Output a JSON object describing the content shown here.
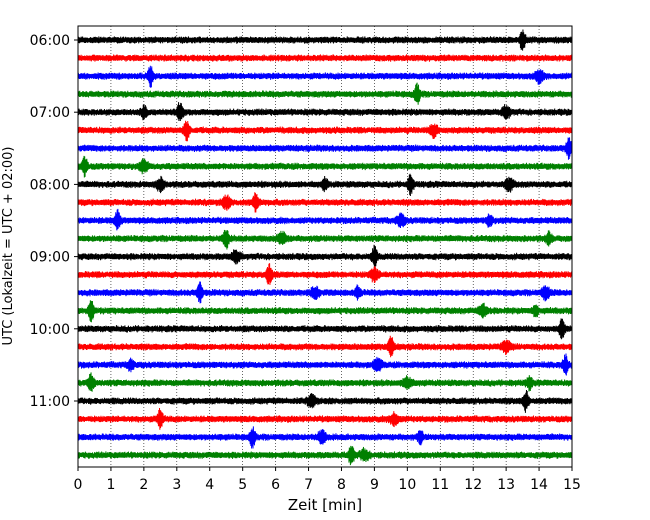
{
  "chart_data": {
    "type": "line",
    "xlabel": "Zeit  [min]",
    "ylabel": "UTC (Lokalzeit = UTC + 02:00)",
    "xlim": [
      0,
      15
    ],
    "x_ticks": [
      "0",
      "1",
      "2",
      "3",
      "4",
      "5",
      "6",
      "7",
      "8",
      "9",
      "10",
      "11",
      "12",
      "13",
      "14",
      "15"
    ],
    "y_ticks": [
      "06:00",
      "07:00",
      "08:00",
      "09:00",
      "10:00",
      "11:00"
    ],
    "grid": "vertical-dotted",
    "trace_colors": [
      "#000000",
      "#ff0000",
      "#0000ff",
      "#008000"
    ],
    "series": [
      {
        "start": "06:00",
        "color": "#000000",
        "events_min": [
          13.5
        ]
      },
      {
        "start": "06:15",
        "color": "#ff0000",
        "events_min": []
      },
      {
        "start": "06:30",
        "color": "#0000ff",
        "events_min": [
          2.2,
          14.0
        ]
      },
      {
        "start": "06:45",
        "color": "#008000",
        "events_min": [
          10.3
        ]
      },
      {
        "start": "07:00",
        "color": "#000000",
        "events_min": [
          3.1,
          13.0,
          2.0
        ]
      },
      {
        "start": "07:15",
        "color": "#ff0000",
        "events_min": [
          3.3,
          10.8
        ]
      },
      {
        "start": "07:30",
        "color": "#0000ff",
        "events_min": [
          14.9
        ]
      },
      {
        "start": "07:45",
        "color": "#008000",
        "events_min": [
          0.2,
          2.0
        ]
      },
      {
        "start": "08:00",
        "color": "#000000",
        "events_min": [
          10.1,
          13.1,
          7.5,
          2.5
        ]
      },
      {
        "start": "08:15",
        "color": "#ff0000",
        "events_min": [
          5.4,
          4.5
        ]
      },
      {
        "start": "08:30",
        "color": "#0000ff",
        "events_min": [
          1.2,
          9.8,
          12.5
        ]
      },
      {
        "start": "08:45",
        "color": "#008000",
        "events_min": [
          4.5,
          6.2,
          14.3
        ]
      },
      {
        "start": "09:00",
        "color": "#000000",
        "events_min": [
          9.0,
          4.8
        ]
      },
      {
        "start": "09:15",
        "color": "#ff0000",
        "events_min": [
          5.8,
          9.0
        ]
      },
      {
        "start": "09:30",
        "color": "#0000ff",
        "events_min": [
          3.7,
          7.2,
          8.5,
          14.2
        ]
      },
      {
        "start": "09:45",
        "color": "#008000",
        "events_min": [
          0.4,
          12.3,
          13.9
        ]
      },
      {
        "start": "10:00",
        "color": "#000000",
        "events_min": [
          14.7
        ]
      },
      {
        "start": "10:15",
        "color": "#ff0000",
        "events_min": [
          9.5,
          13.0
        ]
      },
      {
        "start": "10:30",
        "color": "#0000ff",
        "events_min": [
          14.8,
          9.1,
          1.6
        ]
      },
      {
        "start": "10:45",
        "color": "#008000",
        "events_min": [
          0.4,
          10.0,
          13.7
        ]
      },
      {
        "start": "11:00",
        "color": "#000000",
        "events_min": [
          13.6,
          7.1
        ]
      },
      {
        "start": "11:15",
        "color": "#ff0000",
        "events_min": [
          2.5,
          9.6
        ]
      },
      {
        "start": "11:30",
        "color": "#0000ff",
        "events_min": [
          5.3,
          7.4,
          10.4
        ]
      },
      {
        "start": "11:45",
        "color": "#008000",
        "events_min": [
          8.3,
          8.7
        ]
      }
    ]
  }
}
